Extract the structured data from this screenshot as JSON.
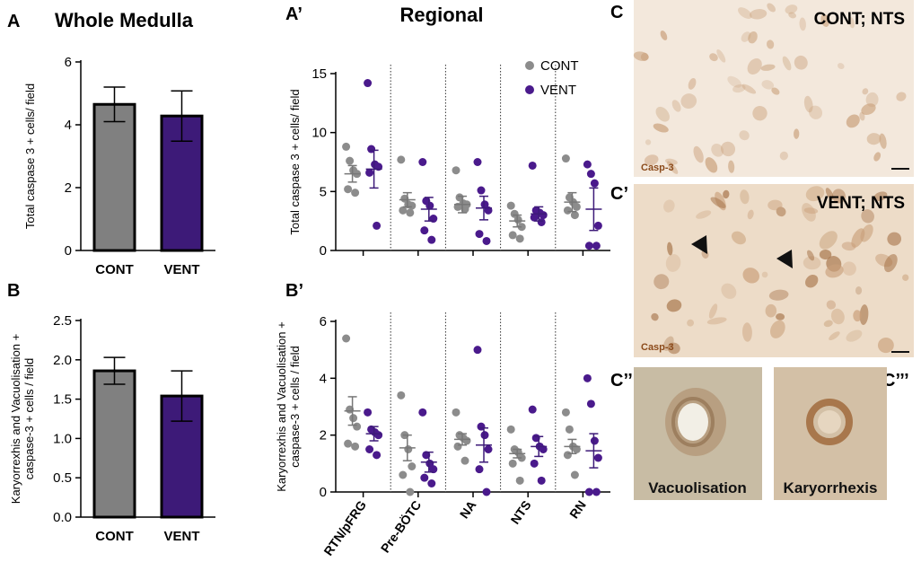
{
  "panel_letters": {
    "A": "A",
    "A_prime": "A’",
    "B": "B",
    "B_prime": "B’",
    "C": "C",
    "C_prime": "C’",
    "C_double_prime": "C’’",
    "C_triple_prime": "C’’’"
  },
  "colors": {
    "cont": "#808080",
    "vent": "#3d1a78",
    "cont_point": "#8c8c8c",
    "vent_point": "#4a1a8c",
    "tissue_light": "#f3e8dc",
    "tissue_mid": "#e8d3bd",
    "cell_stain": "#c9a07a",
    "cell_dark": "#a7744a",
    "casp_label": "#8b4a1a"
  },
  "chart_data": [
    {
      "id": "A",
      "type": "bar",
      "title": "Whole Medulla",
      "ylabel": "Total caspase 3 + cells/ field",
      "ylim": [
        0,
        6
      ],
      "yticks": [
        "0",
        "2",
        "4",
        "6"
      ],
      "categories": [
        "CONT",
        "VENT"
      ],
      "values": [
        4.65,
        4.28
      ],
      "errors": [
        0.55,
        0.8
      ]
    },
    {
      "id": "B",
      "type": "bar",
      "title": "",
      "ylabel": [
        "Karyorrexhis and Vacuolisation +",
        "caspase-3 + cells / field"
      ],
      "ylim": [
        0,
        2.5
      ],
      "yticks": [
        "0.0",
        "0.5",
        "1.0",
        "1.5",
        "2.0",
        "2.5"
      ],
      "categories": [
        "CONT",
        "VENT"
      ],
      "values": [
        1.86,
        1.54
      ],
      "errors": [
        0.17,
        0.32
      ]
    },
    {
      "id": "A_prime",
      "type": "scatter",
      "title": "Regional",
      "ylabel": "Total caspase 3 + cells/ field",
      "ylim": [
        0,
        15
      ],
      "yticks": [
        "0",
        "5",
        "10",
        "15"
      ],
      "legend": [
        "CONT",
        "VENT"
      ],
      "legend_position": "top-right",
      "categories": [
        "RTN/pFRG",
        "Pre-BÖTC",
        "NA",
        "NTS",
        "RN"
      ],
      "series": [
        {
          "name": "CONT",
          "means": [
            6.5,
            4.3,
            3.9,
            2.5,
            4.1
          ],
          "sems": [
            0.7,
            0.6,
            0.7,
            0.5,
            0.8
          ],
          "points": [
            [
              8.8,
              7.6,
              6.8,
              6.5,
              5.2,
              4.9
            ],
            [
              7.7,
              4.4,
              3.9,
              3.8,
              3.4,
              3.2
            ],
            [
              6.8,
              4.5,
              4.0,
              3.9,
              3.7,
              3.5
            ],
            [
              3.8,
              3.1,
              2.6,
              2.0,
              1.3,
              1.0
            ],
            [
              7.8,
              4.5,
              4.1,
              3.7,
              3.4,
              3.0
            ]
          ]
        },
        {
          "name": "VENT",
          "means": [
            6.9,
            3.5,
            3.6,
            3.1,
            3.5
          ],
          "sems": [
            1.6,
            1.0,
            1.0,
            0.6,
            1.8
          ],
          "points": [
            [
              14.2,
              8.6,
              7.3,
              7.1,
              6.6,
              2.1
            ],
            [
              7.5,
              4.2,
              3.8,
              2.7,
              1.7,
              0.9
            ],
            [
              7.5,
              5.1,
              3.9,
              3.4,
              1.4,
              0.8
            ],
            [
              7.2,
              3.4,
              3.2,
              3.0,
              2.8,
              2.4
            ],
            [
              7.3,
              6.5,
              5.7,
              2.1,
              0.4,
              0.4
            ]
          ]
        }
      ]
    },
    {
      "id": "B_prime",
      "type": "scatter",
      "title": "",
      "ylabel": [
        "Karyorrexhis and Vacuolisation +",
        "caspase-3 + cells / field"
      ],
      "ylim": [
        0,
        6
      ],
      "yticks": [
        "0",
        "2",
        "4",
        "6"
      ],
      "categories": [
        "RTN/pFRG",
        "Pre-BÖTC",
        "NA",
        "NTS",
        "RN"
      ],
      "series": [
        {
          "name": "CONT",
          "means": [
            2.85,
            1.55,
            1.85,
            1.35,
            1.6
          ],
          "sems": [
            0.5,
            0.45,
            0.2,
            0.15,
            0.25
          ],
          "points": [
            [
              5.4,
              2.9,
              2.6,
              2.3,
              1.7,
              1.6
            ],
            [
              3.4,
              2.0,
              1.5,
              0.9,
              0.6,
              0.0
            ],
            [
              2.8,
              2.0,
              1.9,
              1.8,
              1.6,
              1.1
            ],
            [
              2.2,
              1.5,
              1.4,
              1.2,
              1.0,
              0.4
            ],
            [
              2.8,
              2.2,
              1.6,
              1.5,
              1.3,
              0.6
            ]
          ]
        },
        {
          "name": "VENT",
          "means": [
            2.05,
            1.05,
            1.65,
            1.6,
            1.45
          ],
          "sems": [
            0.25,
            0.35,
            0.6,
            0.35,
            0.6
          ],
          "points": [
            [
              2.8,
              2.2,
              2.1,
              2.0,
              1.5,
              1.3
            ],
            [
              2.8,
              1.3,
              1.0,
              0.8,
              0.5,
              0.3
            ],
            [
              5.0,
              2.3,
              2.0,
              1.5,
              0.8,
              0.0
            ],
            [
              2.9,
              1.9,
              1.6,
              1.5,
              1.0,
              0.4
            ],
            [
              4.0,
              3.1,
              1.8,
              1.2,
              0.0,
              0.0
            ]
          ]
        }
      ]
    }
  ],
  "micrographs": {
    "c_label": "CONT; NTS",
    "c_prime_label": "VENT; NTS",
    "casp_label_1": "Casp-3",
    "casp_label_2": "Casp-3",
    "c_double_label": "Vacuolisation",
    "c_triple_label": "Karyorrhexis"
  }
}
